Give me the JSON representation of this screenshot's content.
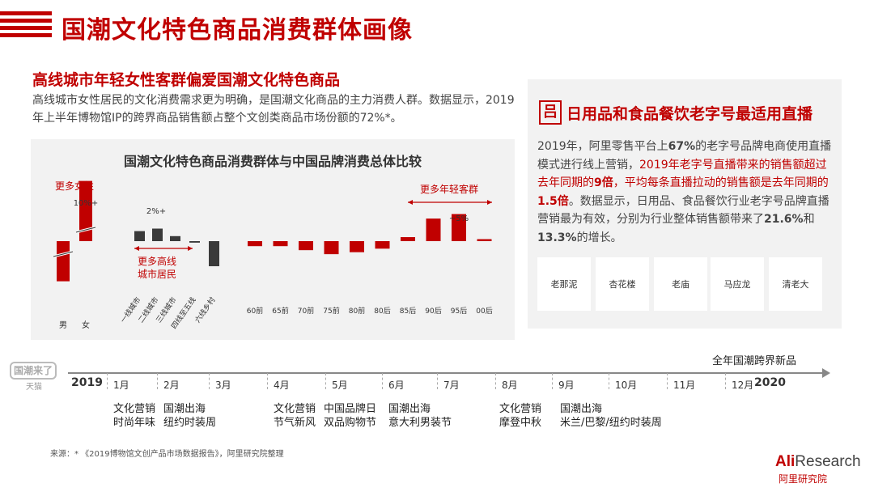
{
  "header": {
    "title": "国潮文化特色商品消费群体画像"
  },
  "left": {
    "subtitle": "高线城市年轻女性客群偏爱国潮文化特色商品",
    "paragraph": "高线城市女性居民的文化消费需求更为明确，是国潮文化商品的主力消费人群。数据显示，2019年上半年博物馆IP的跨界商品销售额占整个文创类商品市场份额的72%*。"
  },
  "chart_data": {
    "type": "bar",
    "title": "国潮文化特色商品消费群体与中国品牌消费总体比较",
    "groups": [
      {
        "name": "gender",
        "categories": [
          "男",
          "女"
        ],
        "values": [
          -8,
          12
        ]
      },
      {
        "name": "city",
        "categories": [
          "一线城市",
          "二线城市",
          "三线城市",
          "四线至五线",
          "六线乡村"
        ],
        "values": [
          2,
          2.5,
          1,
          -0.3,
          -5
        ]
      },
      {
        "name": "age",
        "categories": [
          "60前",
          "65前",
          "70前",
          "75前",
          "80前",
          "80后",
          "85后",
          "90后",
          "95后",
          "00后"
        ],
        "values": [
          -1,
          -1,
          -1.8,
          -2.6,
          -2.2,
          -1.5,
          0.8,
          4.5,
          5.4,
          0.4
        ]
      }
    ],
    "annotations": {
      "female": "更多女性",
      "female_value": "10%+",
      "city_value": "2%+",
      "high_city": "更多高线城市居民",
      "young": "更多年轻客群",
      "young_value": "~5%"
    }
  },
  "right": {
    "title": "日用品和食品餐饮老字号最适用直播",
    "icon_char": "吕",
    "logos": [
      "老那泥",
      "杏花楼",
      "老庙",
      "马应龙",
      "清老大"
    ]
  },
  "timeline": {
    "start_year": "2019",
    "end_year": "2020",
    "end_label": "全年国潮跨界新品",
    "months": [
      "1月",
      "2月",
      "3月",
      "4月",
      "5月",
      "6月",
      "7月",
      "8月",
      "9月",
      "10月",
      "11月",
      "12月"
    ],
    "events": [
      {
        "line1": "文化营销",
        "line2": "时尚年味"
      },
      {
        "line1": "国潮出海",
        "line2": "纽约时装周"
      },
      {
        "line1": "文化营销",
        "line2": "节气新风"
      },
      {
        "line1": "中国品牌日",
        "line2": "双品购物节"
      },
      {
        "line1": "国潮出海",
        "line2": "意大利男装节"
      },
      {
        "line1": "文化营销",
        "line2": "摩登中秋"
      },
      {
        "line1": "国潮出海",
        "line2": "米兰/巴黎/纽约时装周"
      }
    ],
    "logo_text": "国潮来了",
    "logo_sub": "天猫"
  },
  "footer": {
    "source": "来源：* 《2019博物馆文创产品市场数据报告》，阿里研究院整理",
    "brand": "AliResearch",
    "brand_cn": "阿里研究院"
  },
  "colors": {
    "accent": "#c00000",
    "bar_dark": "#3a3a3a",
    "panel": "#f2f2f2"
  }
}
